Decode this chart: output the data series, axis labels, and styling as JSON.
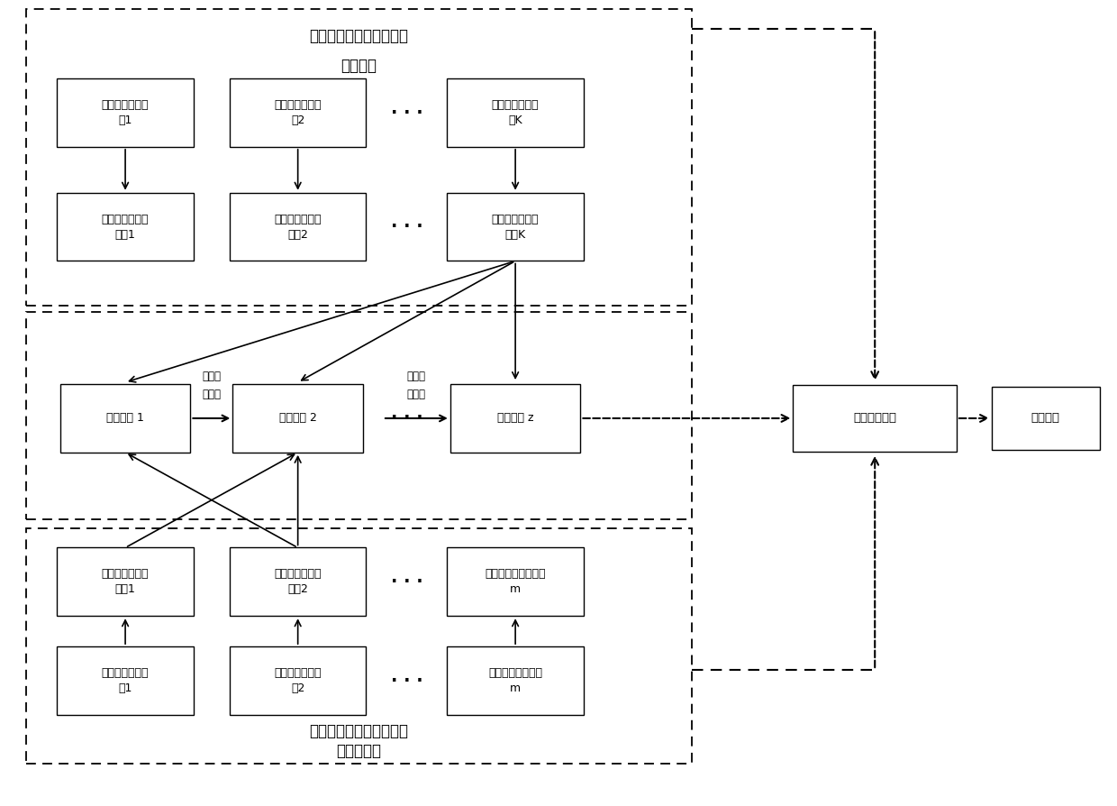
{
  "bg_color": "#ffffff",
  "title_top": "已知空间目标图像数据集",
  "title_top_sub": "（源域）",
  "title_bot": "未知空间目标图像数据集",
  "title_bot_sub": "（目标域）",
  "src_img_labels": [
    "已知空间目标图\n像1",
    "已知空间目标图\n像2",
    "已知空间目标图\n像K"
  ],
  "src_feat_labels": [
    "已知空间目标特\n征图1",
    "已知空间目标特\n征图2",
    "已知空间目标特\n征图K"
  ],
  "tgt_img_labels": [
    "未知空间目标图\n像1",
    "未知空间目标图\n像2",
    "未知空间目标图像\nm"
  ],
  "tgt_feat_labels": [
    "未知空间目标特\n征图1",
    "未知空间目标特\n征图2",
    "未知空间目标特征图\nm"
  ],
  "trans_labels": [
    "转换矩阵 1",
    "转换矩阵 2",
    "转换矩阵 z"
  ],
  "feat_matrix_label": "特征变换矩阵",
  "common_label": "共同特征",
  "migrate_line1": "迁移效",
  "migrate_line2": "果累积",
  "font_size": 9,
  "title_font_size": 12
}
